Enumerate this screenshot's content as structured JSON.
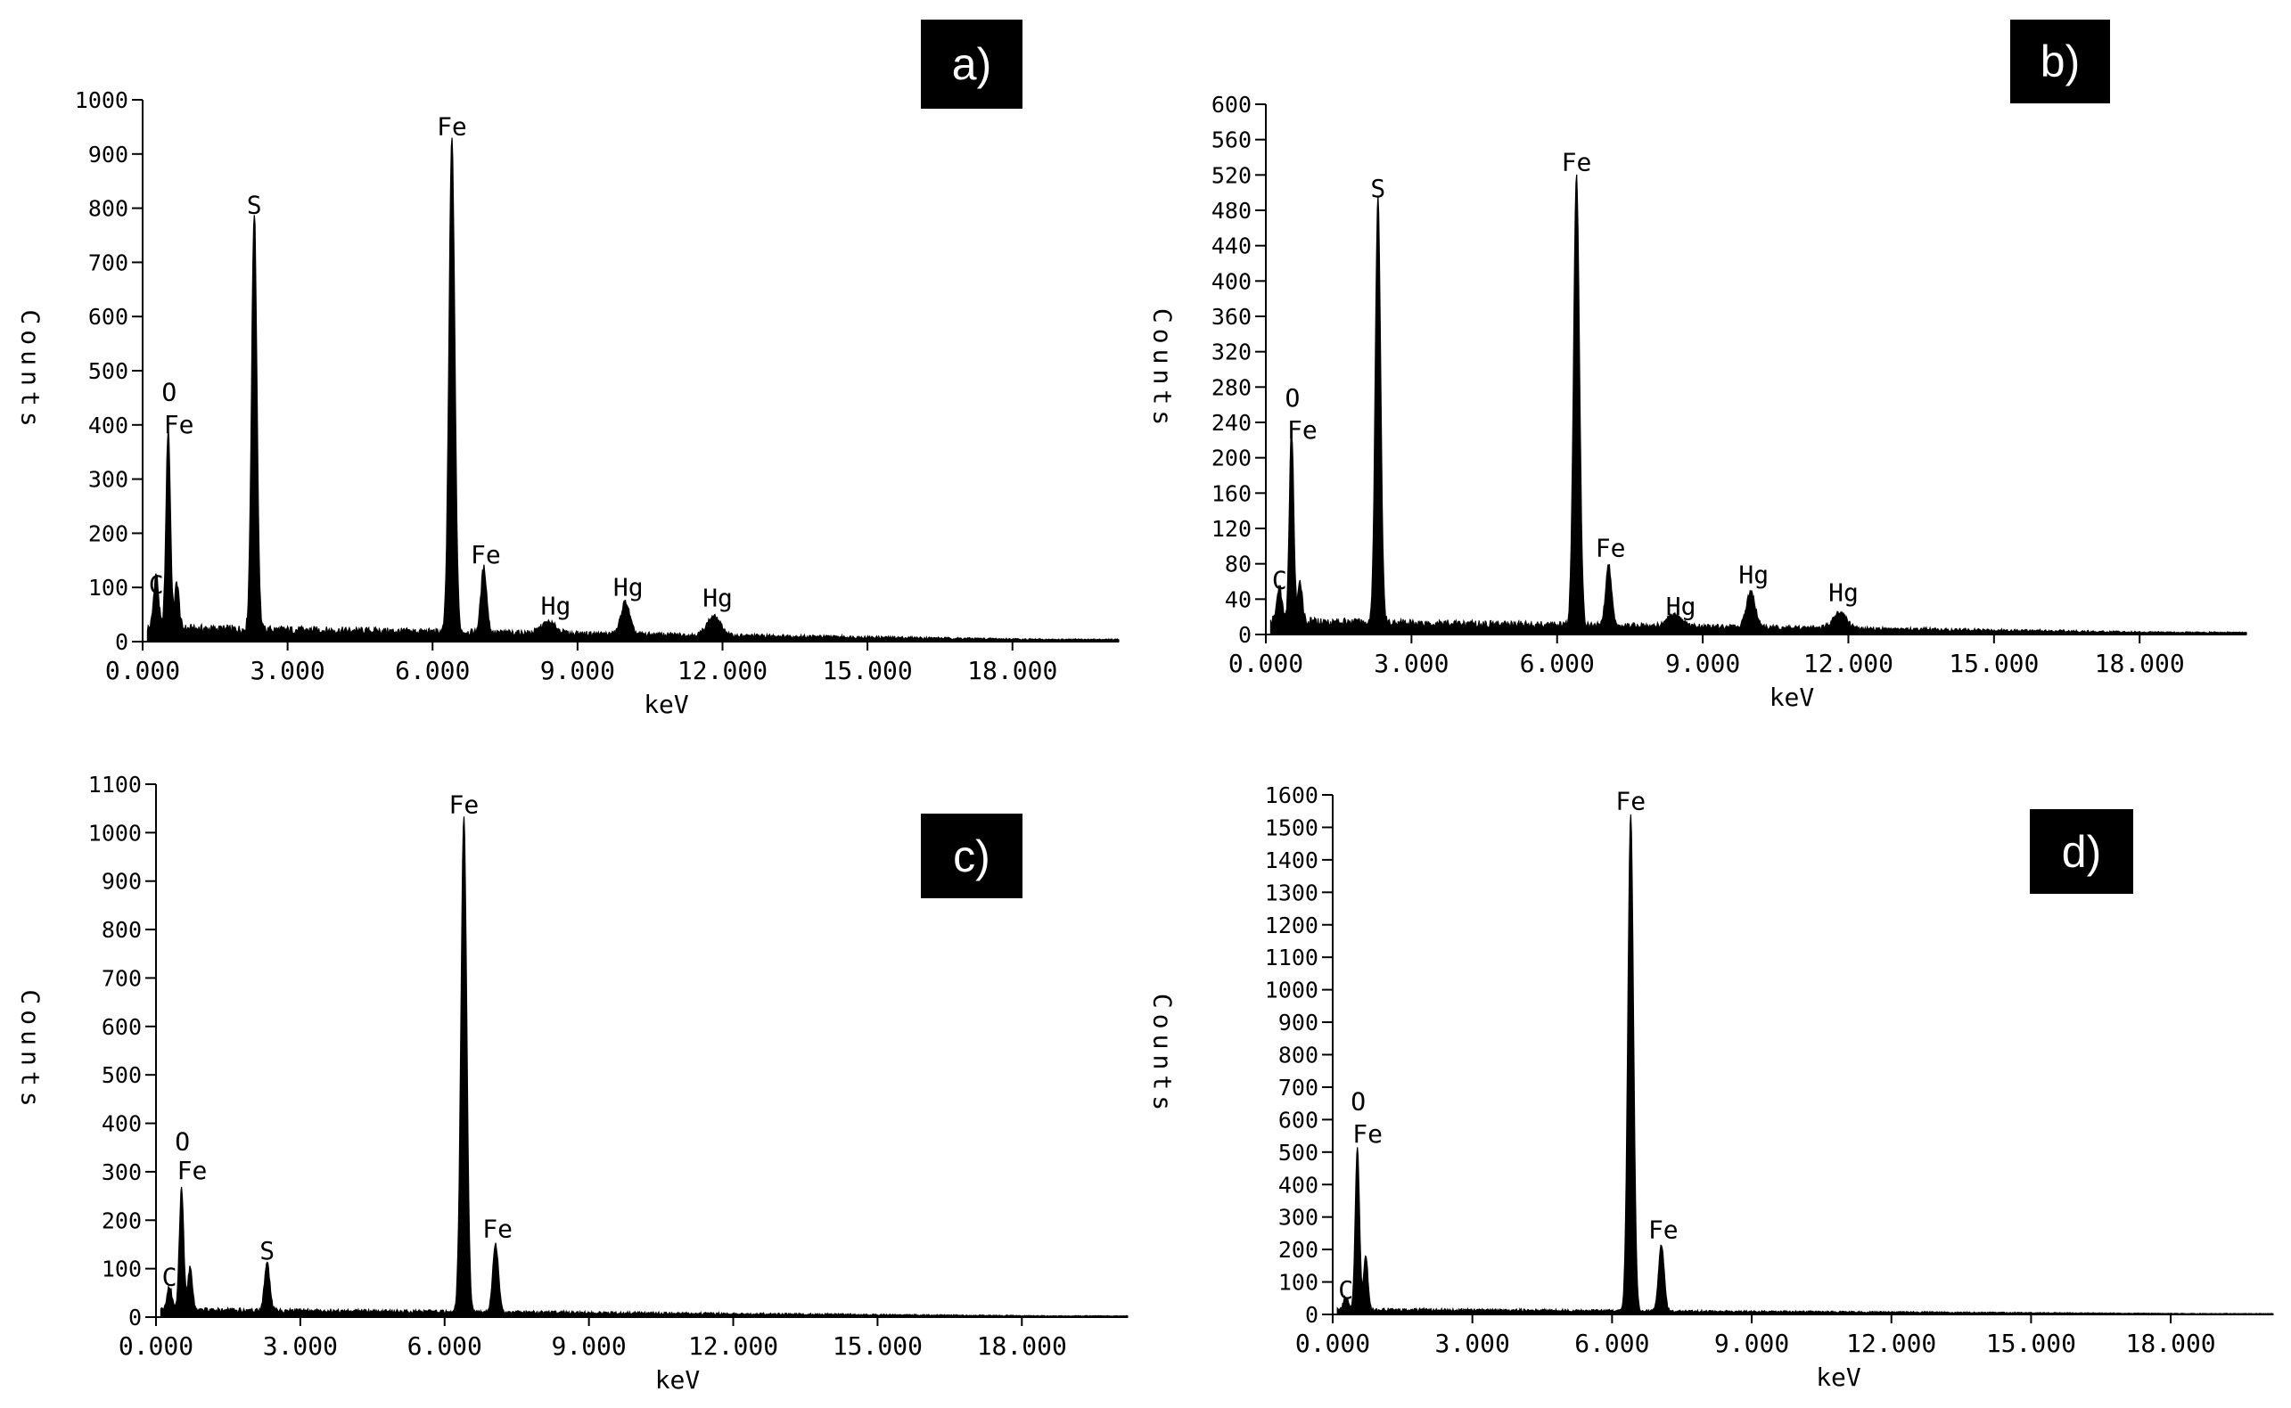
{
  "figure": {
    "colors": {
      "ink": "#000000",
      "background": "#ffffff",
      "badge_text": "#ffffff"
    }
  },
  "chart_data": [
    {
      "type": "area",
      "panel_label": "a)",
      "xlabel": "keV",
      "ylabel": "Counts",
      "xlim": [
        0,
        20.2
      ],
      "ylim": [
        0,
        1000
      ],
      "x_ticks": [
        0,
        3,
        6,
        9,
        12,
        15,
        18
      ],
      "x_tick_labels": [
        "0.000",
        "3.000",
        "6.000",
        "9.000",
        "12.000",
        "15.000",
        "18.000"
      ],
      "y_ticks": [
        0,
        100,
        200,
        300,
        400,
        500,
        600,
        700,
        800,
        900,
        1000
      ],
      "baseline": 25,
      "peaks": [
        {
          "x": 0.28,
          "y": 100,
          "w": 0.05
        },
        {
          "x": 0.53,
          "y": 370,
          "w": 0.045
        },
        {
          "x": 0.71,
          "y": 85,
          "w": 0.045
        },
        {
          "x": 2.31,
          "y": 770,
          "w": 0.055
        },
        {
          "x": 6.4,
          "y": 910,
          "w": 0.06
        },
        {
          "x": 7.06,
          "y": 120,
          "w": 0.06
        },
        {
          "x": 8.4,
          "y": 20,
          "w": 0.15
        },
        {
          "x": 9.99,
          "y": 60,
          "w": 0.09
        },
        {
          "x": 11.82,
          "y": 35,
          "w": 0.14
        }
      ],
      "annotations": [
        {
          "text": "O",
          "x": 0.55,
          "y": 445
        },
        {
          "text": "Fe",
          "x": 0.75,
          "y": 385
        },
        {
          "text": "C",
          "x": 0.28,
          "y": 90
        },
        {
          "text": "S",
          "x": 2.31,
          "y": 790
        },
        {
          "text": "Fe",
          "x": 6.4,
          "y": 935
        },
        {
          "text": "Fe",
          "x": 7.1,
          "y": 145
        },
        {
          "text": "Hg",
          "x": 8.55,
          "y": 50
        },
        {
          "text": "Hg",
          "x": 10.05,
          "y": 85
        },
        {
          "text": "Hg",
          "x": 11.9,
          "y": 65
        }
      ]
    },
    {
      "type": "area",
      "panel_label": "b)",
      "xlabel": "keV",
      "ylabel": "Counts",
      "xlim": [
        0,
        20.2
      ],
      "ylim": [
        0,
        600
      ],
      "x_ticks": [
        0,
        3,
        6,
        9,
        12,
        15,
        18
      ],
      "x_tick_labels": [
        "0.000",
        "3.000",
        "6.000",
        "9.000",
        "12.000",
        "15.000",
        "18.000"
      ],
      "y_ticks": [
        0,
        40,
        80,
        120,
        160,
        200,
        240,
        280,
        320,
        360,
        400,
        440,
        480,
        520,
        560,
        600
      ],
      "baseline": 15,
      "peaks": [
        {
          "x": 0.28,
          "y": 40,
          "w": 0.05
        },
        {
          "x": 0.53,
          "y": 215,
          "w": 0.045
        },
        {
          "x": 0.71,
          "y": 45,
          "w": 0.045
        },
        {
          "x": 2.31,
          "y": 480,
          "w": 0.055
        },
        {
          "x": 6.4,
          "y": 510,
          "w": 0.06
        },
        {
          "x": 7.06,
          "y": 70,
          "w": 0.06
        },
        {
          "x": 8.4,
          "y": 12,
          "w": 0.15
        },
        {
          "x": 9.99,
          "y": 40,
          "w": 0.09
        },
        {
          "x": 11.82,
          "y": 18,
          "w": 0.14
        }
      ],
      "annotations": [
        {
          "text": "O",
          "x": 0.55,
          "y": 258
        },
        {
          "text": "Fe",
          "x": 0.75,
          "y": 222
        },
        {
          "text": "C",
          "x": 0.28,
          "y": 52
        },
        {
          "text": "S",
          "x": 2.31,
          "y": 495
        },
        {
          "text": "Fe",
          "x": 6.4,
          "y": 525
        },
        {
          "text": "Fe",
          "x": 7.1,
          "y": 88
        },
        {
          "text": "Hg",
          "x": 8.55,
          "y": 22
        },
        {
          "text": "Hg",
          "x": 10.05,
          "y": 58
        },
        {
          "text": "Hg",
          "x": 11.9,
          "y": 38
        }
      ]
    },
    {
      "type": "area",
      "panel_label": "c)",
      "xlabel": "keV",
      "ylabel": "Counts",
      "xlim": [
        0,
        20.2
      ],
      "ylim": [
        0,
        1100
      ],
      "x_ticks": [
        0,
        3,
        6,
        9,
        12,
        15,
        18
      ],
      "x_tick_labels": [
        "0.000",
        "3.000",
        "6.000",
        "9.000",
        "12.000",
        "15.000",
        "18.000"
      ],
      "y_ticks": [
        0,
        100,
        200,
        300,
        400,
        500,
        600,
        700,
        800,
        900,
        1000,
        1100
      ],
      "baseline": 15,
      "peaks": [
        {
          "x": 0.28,
          "y": 50,
          "w": 0.05
        },
        {
          "x": 0.53,
          "y": 250,
          "w": 0.045
        },
        {
          "x": 0.71,
          "y": 90,
          "w": 0.045
        },
        {
          "x": 2.31,
          "y": 100,
          "w": 0.055
        },
        {
          "x": 6.4,
          "y": 1020,
          "w": 0.06
        },
        {
          "x": 7.06,
          "y": 140,
          "w": 0.06
        }
      ],
      "annotations": [
        {
          "text": "O",
          "x": 0.55,
          "y": 345
        },
        {
          "text": "Fe",
          "x": 0.75,
          "y": 285
        },
        {
          "text": "C",
          "x": 0.28,
          "y": 65
        },
        {
          "text": "S",
          "x": 2.31,
          "y": 120
        },
        {
          "text": "Fe",
          "x": 6.4,
          "y": 1040
        },
        {
          "text": "Fe",
          "x": 7.1,
          "y": 165
        }
      ]
    },
    {
      "type": "area",
      "panel_label": "d)",
      "xlabel": "keV",
      "ylabel": "Counts",
      "xlim": [
        0,
        20.2
      ],
      "ylim": [
        0,
        1600
      ],
      "x_ticks": [
        0,
        3,
        6,
        9,
        12,
        15,
        18
      ],
      "x_tick_labels": [
        "0.000",
        "3.000",
        "6.000",
        "9.000",
        "12.000",
        "15.000",
        "18.000"
      ],
      "y_ticks": [
        0,
        100,
        200,
        300,
        400,
        500,
        600,
        700,
        800,
        900,
        1000,
        1100,
        1200,
        1300,
        1400,
        1500,
        1600
      ],
      "baseline": 15,
      "peaks": [
        {
          "x": 0.28,
          "y": 40,
          "w": 0.05
        },
        {
          "x": 0.53,
          "y": 500,
          "w": 0.045
        },
        {
          "x": 0.71,
          "y": 170,
          "w": 0.045
        },
        {
          "x": 6.4,
          "y": 1530,
          "w": 0.06
        },
        {
          "x": 7.06,
          "y": 205,
          "w": 0.06
        }
      ],
      "annotations": [
        {
          "text": "O",
          "x": 0.55,
          "y": 630
        },
        {
          "text": "Fe",
          "x": 0.75,
          "y": 530
        },
        {
          "text": "C",
          "x": 0.28,
          "y": 50
        },
        {
          "text": "Fe",
          "x": 6.4,
          "y": 1555
        },
        {
          "text": "Fe",
          "x": 7.1,
          "y": 235
        }
      ]
    }
  ]
}
